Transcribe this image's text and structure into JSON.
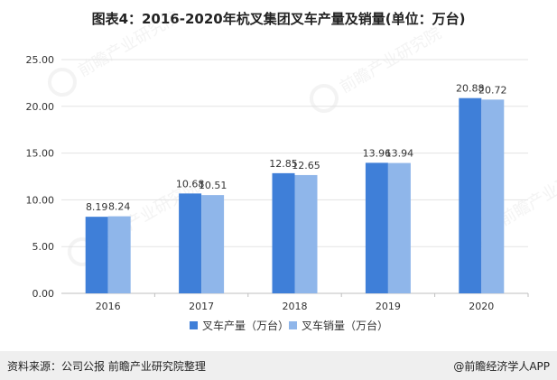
{
  "title": "图表4：2016-2020年杭叉集团叉车产量及销量(单位：万台)",
  "source": "资料来源：公司公报 前瞻产业研究院整理",
  "brand": "@前瞻经济学人APP",
  "watermark": "前瞻产业研究院",
  "colors": {
    "production": "#3f7fd8",
    "sales": "#8fb6ea",
    "grid": "#e3e3e3",
    "axis": "#bfbfbf",
    "text": "#333333"
  },
  "chart_data": {
    "type": "bar",
    "categories": [
      "2016",
      "2017",
      "2018",
      "2019",
      "2020"
    ],
    "series": [
      {
        "name": "叉车产量（万台）",
        "values": [
          8.19,
          10.68,
          12.85,
          13.96,
          20.88
        ]
      },
      {
        "name": "叉车销量（万台）",
        "values": [
          8.24,
          10.51,
          12.65,
          13.94,
          20.72
        ]
      }
    ],
    "value_labels": [
      [
        "8.19",
        "10.68",
        "12.85",
        "13.96",
        "20.88"
      ],
      [
        "8.24",
        "10.51",
        "12.65",
        "13.94",
        "20.72"
      ]
    ],
    "yticks": [
      "0.00",
      "5.00",
      "10.00",
      "15.00",
      "20.00",
      "25.00"
    ],
    "ylim": [
      0,
      25
    ],
    "grid": true,
    "legend_position": "bottom"
  }
}
